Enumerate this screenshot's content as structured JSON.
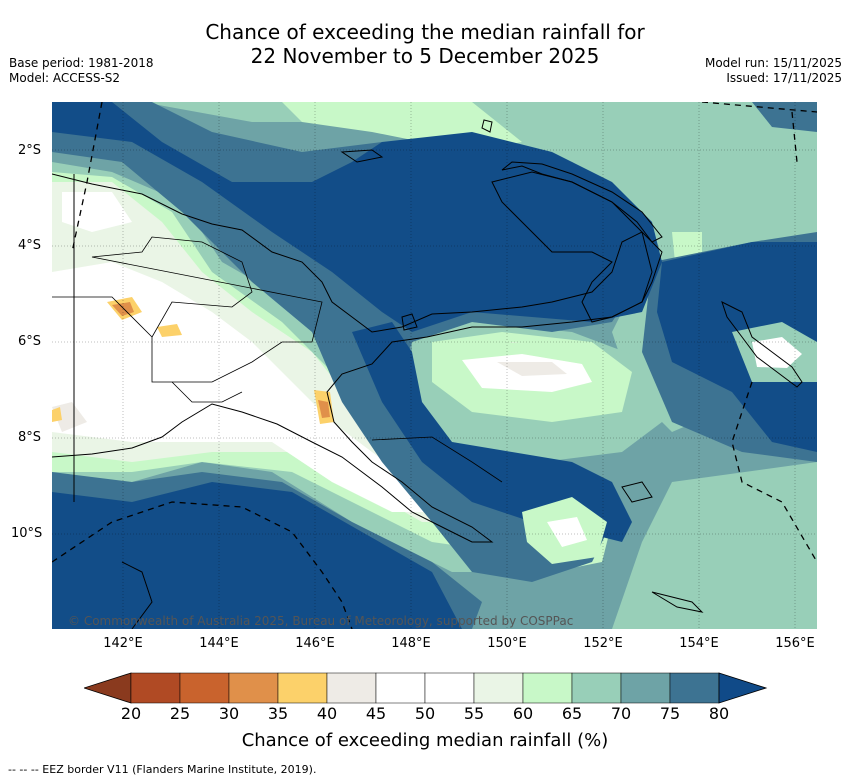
{
  "title_line1": "Chance of exceeding the median rainfall for",
  "title_line2": "22 November to 5 December 2025",
  "meta_left": [
    "Base period: 1981-2018",
    "Model: ACCESS-S2"
  ],
  "meta_right": [
    "Model run: 15/11/2025",
    "Issued: 17/11/2025"
  ],
  "copyright": "© Commonwealth of Australia 2025, Bureau of Meteorology, supported by COSPPac",
  "lat_ticks": [
    "2°S",
    "4°S",
    "6°S",
    "8°S",
    "10°S"
  ],
  "lon_ticks": [
    "142°E",
    "144°E",
    "146°E",
    "148°E",
    "150°E",
    "152°E",
    "154°E",
    "156°E"
  ],
  "colorbar": {
    "labels": [
      "20",
      "25",
      "30",
      "35",
      "40",
      "45",
      "50",
      "55",
      "60",
      "65",
      "70",
      "75",
      "80"
    ],
    "colors": [
      "#8a3a1e",
      "#b04a24",
      "#c9632d",
      "#e0904a",
      "#fcd16a",
      "#eeebe6",
      "#ffffff",
      "#ffffff",
      "#eaf5e6",
      "#c8f8c8",
      "#98cfb8",
      "#6ea3a6",
      "#3d7392",
      "#104a88"
    ],
    "title": "Chance of exceeding median rainfall (%)"
  },
  "footnote": "-- -- -- EEZ border V11 (Flanders Marine Institute, 2019).",
  "colors": {
    "deep_blue": "#124d88",
    "mid_blue": "#3d7392",
    "teal": "#6ea3a6",
    "seafoam": "#98cfb8",
    "light_green": "#c8f8c8",
    "pale": "#eaf5e6",
    "white": "#ffffff",
    "grey": "#eeebe6",
    "yellow": "#fcd16a",
    "orange": "#e0904a"
  }
}
